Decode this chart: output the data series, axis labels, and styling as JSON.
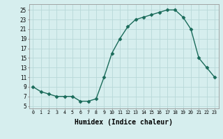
{
  "x": [
    0,
    1,
    2,
    3,
    4,
    5,
    6,
    7,
    8,
    9,
    10,
    11,
    12,
    13,
    14,
    15,
    16,
    17,
    18,
    19,
    20,
    21,
    22,
    23
  ],
  "y": [
    9,
    8,
    7.5,
    7,
    7,
    7,
    6,
    6,
    6.5,
    11,
    16,
    19,
    21.5,
    23,
    23.5,
    24,
    24.5,
    25,
    25,
    23.5,
    21,
    15,
    13,
    11
  ],
  "line_color": "#1a6b5a",
  "marker": "D",
  "marker_size": 2.5,
  "background_color": "#d6eeee",
  "grid_color": "#b8d8d8",
  "xlabel": "Humidex (Indice chaleur)",
  "xlabel_fontsize": 7,
  "xtick_labels": [
    "0",
    "1",
    "2",
    "3",
    "4",
    "5",
    "6",
    "7",
    "8",
    "9",
    "10",
    "11",
    "12",
    "13",
    "14",
    "15",
    "16",
    "17",
    "18",
    "19",
    "20",
    "21",
    "22",
    "23"
  ],
  "ytick_values": [
    5,
    7,
    9,
    11,
    13,
    15,
    17,
    19,
    21,
    23,
    25
  ],
  "xlim": [
    -0.5,
    23.5
  ],
  "ylim": [
    4.5,
    26.2
  ]
}
